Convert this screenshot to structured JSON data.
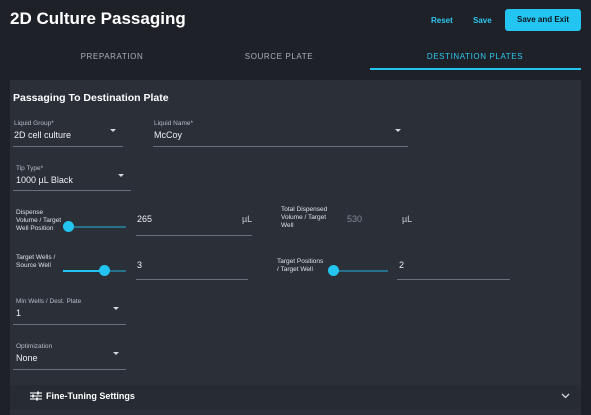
{
  "header": {
    "title": "2D Culture Passaging",
    "buttons": [
      "Reset",
      "Save",
      "Save and Exit"
    ]
  },
  "tabs": {
    "items": [
      "PREPARATION",
      "SOURCE PLATE",
      "DESTINATION PLATES"
    ],
    "active": 2
  },
  "section": {
    "title": "Passaging To Destination Plate",
    "liquid_group": {
      "label": "Liquid Group*",
      "value": "2D cell culture"
    },
    "liquid_name": {
      "label": "Liquid Name*",
      "value": "McCoy"
    },
    "tip_type": {
      "label": "Tip Type*",
      "value": "1000 µL Black"
    },
    "dispense_volume": {
      "label": "Dispense Volume / Target Well Position",
      "value": "265",
      "unit": "µL"
    },
    "total_dispensed": {
      "label": "Total Dispensed Volume / Target Well",
      "value": "530",
      "unit": "µL"
    },
    "target_wells": {
      "label": "Target Wells / Source Well",
      "value": "3"
    },
    "target_positions": {
      "label": "Target Positions / Target Well",
      "value": "2"
    },
    "min_wells": {
      "label": "Min Wells / Dest. Plate",
      "value": "1"
    },
    "optimization": {
      "label": "Optimization",
      "value": "None"
    },
    "fine_tuning": {
      "label": "Fine-Tuning Settings"
    }
  }
}
